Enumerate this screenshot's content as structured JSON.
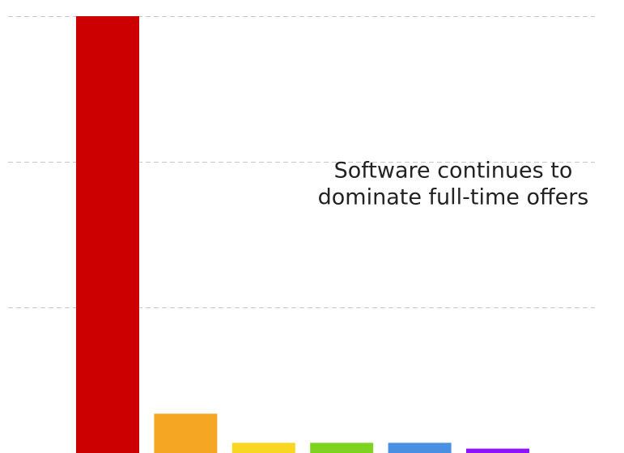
{
  "chart_data": {
    "type": "bar",
    "annotation": [
      "Software continues to",
      "dominate full-time offers"
    ],
    "categories": [
      null,
      null,
      null,
      null,
      null,
      null
    ],
    "values": [
      3.0,
      0.27,
      0.07,
      0.07,
      0.07,
      0.03
    ],
    "colors": [
      "#cc0000",
      "#f5a623",
      "#f8d622",
      "#7ed321",
      "#4a90e2",
      "#9013fe"
    ],
    "ylim": [
      0,
      3
    ],
    "yticks": [
      1,
      2,
      3
    ],
    "grid": true
  }
}
